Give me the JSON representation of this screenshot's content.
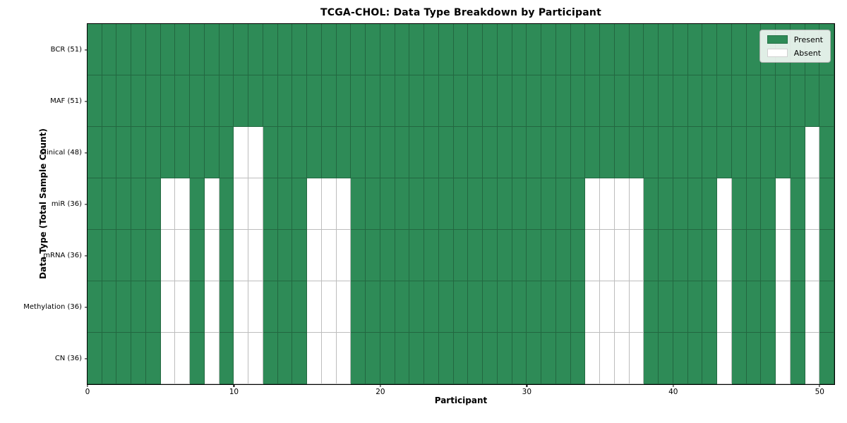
{
  "chart_data": {
    "type": "heatmap",
    "title": "TCGA-CHOL: Data Type Breakdown by Participant",
    "xlabel": "Participant",
    "ylabel": "Data Type (Total Sample Count)",
    "x_ticks": [
      0,
      10,
      20,
      30,
      40,
      50
    ],
    "x_range": [
      0,
      51
    ],
    "n_participants": 51,
    "grid": true,
    "legend_position": "upper right",
    "colors": {
      "present": "#2e8b57",
      "absent": "#ffffff"
    },
    "legend": [
      {
        "label": "Present",
        "key": "present"
      },
      {
        "label": "Absent",
        "key": "absent"
      }
    ],
    "rows": [
      {
        "label": "BCR (51)",
        "total": 51,
        "absent_participants": []
      },
      {
        "label": "MAF (51)",
        "total": 51,
        "absent_participants": []
      },
      {
        "label": "Clinical (48)",
        "total": 48,
        "absent_participants": [
          10,
          11,
          49
        ]
      },
      {
        "label": "miR (36)",
        "total": 36,
        "absent_participants": [
          5,
          6,
          8,
          10,
          11,
          15,
          16,
          17,
          34,
          35,
          36,
          37,
          43,
          47,
          49
        ]
      },
      {
        "label": "mRNA (36)",
        "total": 36,
        "absent_participants": [
          5,
          6,
          8,
          10,
          11,
          15,
          16,
          17,
          34,
          35,
          36,
          37,
          43,
          47,
          49
        ]
      },
      {
        "label": "Methylation (36)",
        "total": 36,
        "absent_participants": [
          5,
          6,
          8,
          10,
          11,
          15,
          16,
          17,
          34,
          35,
          36,
          37,
          43,
          47,
          49
        ]
      },
      {
        "label": "CN (36)",
        "total": 36,
        "absent_participants": [
          5,
          6,
          8,
          10,
          11,
          15,
          16,
          17,
          34,
          35,
          36,
          37,
          43,
          47,
          49
        ]
      }
    ]
  }
}
